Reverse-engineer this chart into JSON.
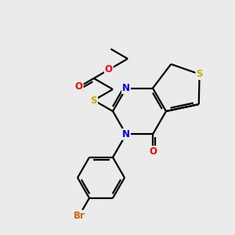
{
  "bg_color": "#ebebeb",
  "line_color": "black",
  "atom_colors": {
    "O": "#ff0000",
    "N": "#0000ff",
    "S": "#ccaa00",
    "Br": "#cc6600",
    "C": "black"
  },
  "lw": 1.6
}
